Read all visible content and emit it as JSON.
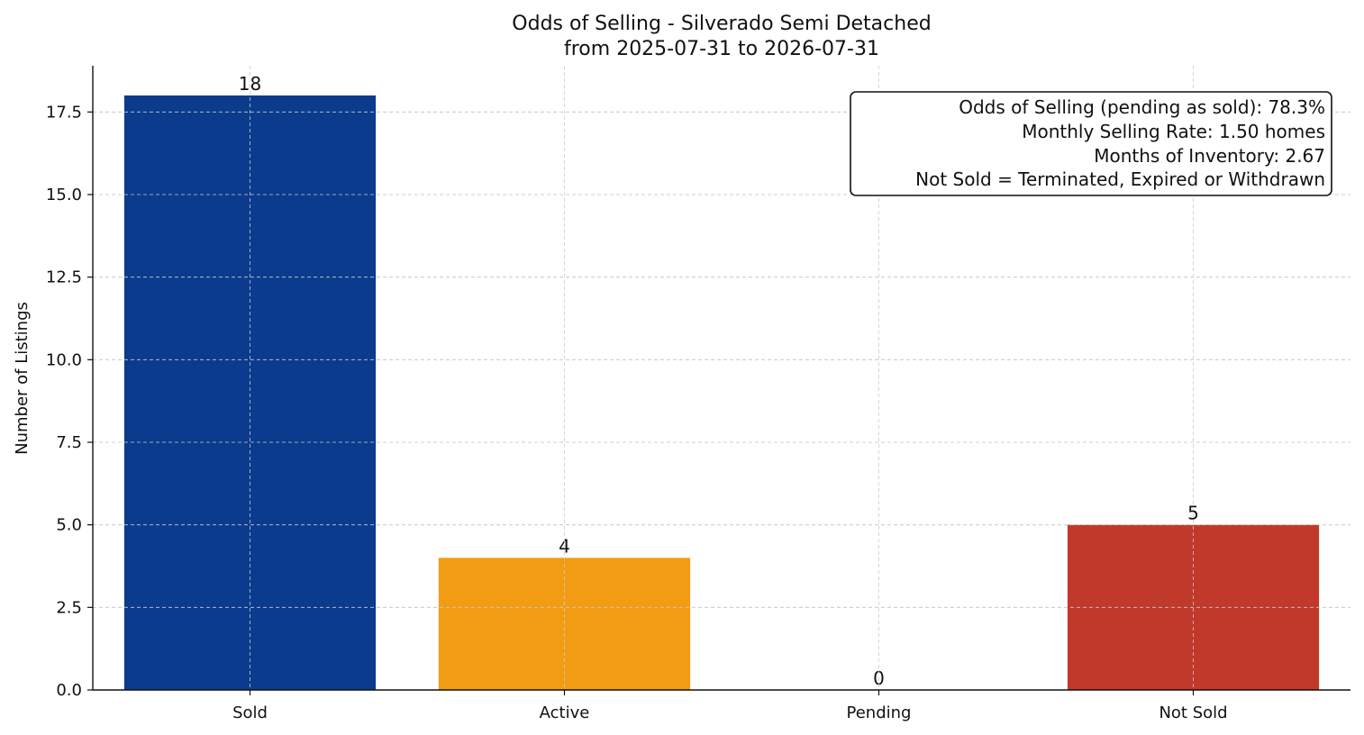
{
  "chart_data": {
    "type": "bar",
    "title": "Odds of Selling - Silverado Semi Detached",
    "subtitle": "from 2025-07-31 to 2026-07-31",
    "xlabel": "",
    "ylabel": "Number of Listings",
    "categories": [
      "Sold",
      "Active",
      "Pending",
      "Not Sold"
    ],
    "values": [
      18,
      4,
      0,
      5
    ],
    "data_labels": [
      "18",
      "4",
      "0",
      "5"
    ],
    "colors": [
      "#0b3b8c",
      "#f29c13",
      "#2e8b57",
      "#c0392b"
    ],
    "ylim": [
      0,
      18.9
    ],
    "yticks": [
      0,
      2.5,
      5,
      7.5,
      10,
      12.5,
      15,
      17.5
    ],
    "ytick_labels": [
      "0.0",
      "2.5",
      "5.0",
      "7.5",
      "10.0",
      "12.5",
      "15.0",
      "17.5"
    ],
    "grid": true,
    "info_box": {
      "placement": "top-right",
      "lines": [
        "Odds of Selling (pending as sold): 78.3%",
        "Monthly Selling Rate: 1.50 homes",
        "Months of Inventory: 2.67",
        "Not Sold = Terminated, Expired or Withdrawn"
      ]
    }
  }
}
